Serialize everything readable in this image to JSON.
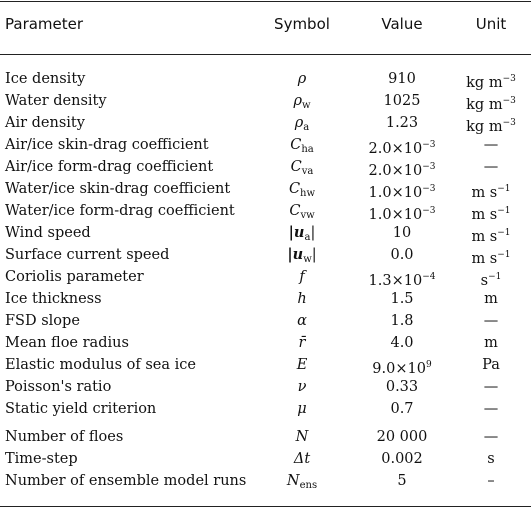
{
  "header": {
    "parameter": "Parameter",
    "symbol": "Symbol",
    "value": "Value",
    "unit": "Unit"
  },
  "rows": [
    {
      "parameter": "Ice density",
      "symbol": "ρ",
      "symbol_sub": "",
      "value": "910",
      "value_exp": "",
      "unit": "kg m",
      "unit_exp": "−3"
    },
    {
      "parameter": "Water density",
      "symbol": "ρ",
      "symbol_sub": "w",
      "value": "1025",
      "value_exp": "",
      "unit": "kg m",
      "unit_exp": "−3"
    },
    {
      "parameter": "Air density",
      "symbol": "ρ",
      "symbol_sub": "a",
      "value": "1.23",
      "value_exp": "",
      "unit": "kg m",
      "unit_exp": "−3"
    },
    {
      "parameter": "Air/ice skin-drag coefficient",
      "symbol": "C",
      "symbol_sub": "ha",
      "value": "2.0×10",
      "value_exp": "−3",
      "unit": "—",
      "unit_exp": ""
    },
    {
      "parameter": "Air/ice form-drag coefficient",
      "symbol": "C",
      "symbol_sub": "va",
      "value": "2.0×10",
      "value_exp": "−3",
      "unit": "—",
      "unit_exp": ""
    },
    {
      "parameter": "Water/ice skin-drag coefficient",
      "symbol": "C",
      "symbol_sub": "hw",
      "value": "1.0×10",
      "value_exp": "−3",
      "unit": "m s",
      "unit_exp": "−1"
    },
    {
      "parameter": "Water/ice form-drag coefficient",
      "symbol": "C",
      "symbol_sub": "vw",
      "value": "1.0×10",
      "value_exp": "−3",
      "unit": "m s",
      "unit_exp": "−1"
    },
    {
      "parameter": "Wind speed",
      "symbol": "|u",
      "symbol_sub": "a",
      "symbol_close": "|",
      "value": "10",
      "value_exp": "",
      "unit": "m s",
      "unit_exp": "−1"
    },
    {
      "parameter": "Surface current speed",
      "symbol": "|u",
      "symbol_sub": "w",
      "symbol_close": "|",
      "value": "0.0",
      "value_exp": "",
      "unit": "m s",
      "unit_exp": "−1"
    },
    {
      "parameter": "Coriolis parameter",
      "symbol": "f",
      "symbol_sub": "",
      "value": "1.3×10",
      "value_exp": "−4",
      "unit": "s",
      "unit_exp": "−1"
    },
    {
      "parameter": "Ice thickness",
      "symbol": "h",
      "symbol_sub": "",
      "value": "1.5",
      "value_exp": "",
      "unit": "m",
      "unit_exp": ""
    },
    {
      "parameter": "FSD slope",
      "symbol": "α",
      "symbol_sub": "",
      "value": "1.8",
      "value_exp": "",
      "unit": "—",
      "unit_exp": ""
    },
    {
      "parameter": "Mean floe radius",
      "symbol": "r̄",
      "symbol_sub": "",
      "value": "4.0",
      "value_exp": "",
      "unit": "m",
      "unit_exp": ""
    },
    {
      "parameter": "Elastic modulus of sea ice",
      "symbol": "E",
      "symbol_sub": "",
      "value": "9.0×10",
      "value_exp": "9",
      "unit": "Pa",
      "unit_exp": ""
    },
    {
      "parameter": "Poisson's ratio",
      "symbol": "ν",
      "symbol_sub": "",
      "value": "0.33",
      "value_exp": "",
      "unit": "—",
      "unit_exp": ""
    },
    {
      "parameter": "Static yield criterion",
      "symbol": "μ",
      "symbol_sub": "",
      "value": "0.7",
      "value_exp": "",
      "unit": "—",
      "unit_exp": ""
    },
    {
      "parameter": "Number of floes",
      "symbol": "N",
      "symbol_sub": "",
      "value": "20 000",
      "value_exp": "",
      "unit": "—",
      "unit_exp": ""
    },
    {
      "parameter": "Time-step",
      "symbol": "Δt",
      "symbol_sub": "",
      "value": "0.002",
      "value_exp": "",
      "unit": "s",
      "unit_exp": ""
    },
    {
      "parameter": "Number of ensemble model runs",
      "symbol": "N",
      "symbol_sub": "ens",
      "value": "5",
      "value_exp": "",
      "unit": "–",
      "unit_exp": ""
    }
  ]
}
